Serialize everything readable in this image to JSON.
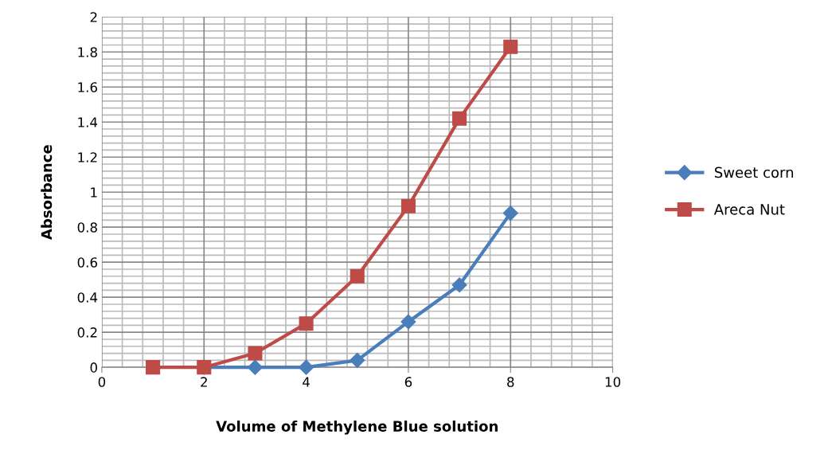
{
  "chart_data": {
    "type": "line",
    "xlabel": "Volume of Methylene Blue solution",
    "ylabel": "Absorbance",
    "xlim": [
      0,
      10
    ],
    "xticks": [
      0,
      2,
      4,
      6,
      8,
      10
    ],
    "ylim": [
      0,
      2
    ],
    "yticks": [
      0,
      0.2,
      0.4,
      0.6,
      0.8,
      1,
      1.2,
      1.4,
      1.6,
      1.8,
      2
    ],
    "grid": true,
    "legend": "right",
    "series": [
      {
        "name": "Sweet corn",
        "color": "#4a7ebb",
        "marker": "diamond",
        "x": [
          2,
          3,
          4,
          5,
          6,
          7,
          8
        ],
        "values": [
          0,
          0,
          0,
          0.04,
          0.26,
          0.47,
          0.88
        ]
      },
      {
        "name": "Areca Nut",
        "color": "#be4b48",
        "marker": "square",
        "x": [
          1,
          2,
          3,
          4,
          5,
          6,
          7,
          8
        ],
        "values": [
          0,
          0,
          0.08,
          0.25,
          0.52,
          0.92,
          1.42,
          1.83
        ]
      }
    ]
  }
}
